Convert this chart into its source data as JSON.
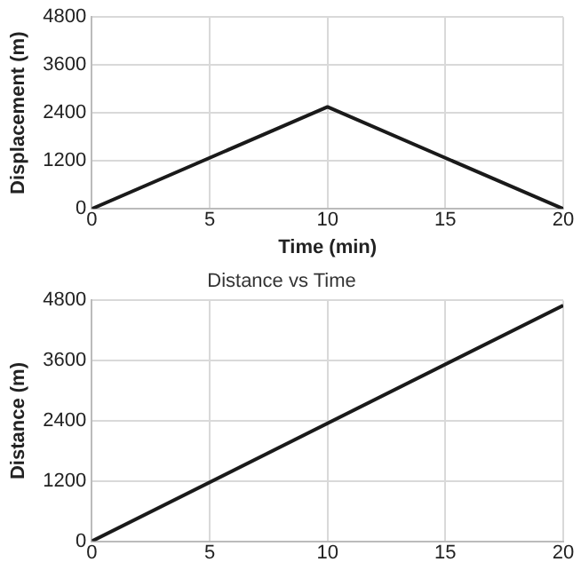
{
  "chart_data": [
    {
      "type": "line",
      "xlabel": "Time (min)",
      "ylabel": "Displacement (m)",
      "x": [
        0,
        10,
        20
      ],
      "xlim": [
        0,
        20
      ],
      "xticks": [
        0,
        5,
        10,
        15,
        20
      ],
      "ylim": [
        0,
        4800
      ],
      "yticks": [
        0,
        1200,
        2400,
        3600,
        4800
      ],
      "grid": true,
      "legend": false,
      "marker": "none",
      "series": [
        {
          "color": "#1a1a1a",
          "values": [
            0,
            2550,
            0
          ]
        }
      ]
    },
    {
      "type": "line",
      "title": "Distance vs Time",
      "ylabel": "Distance (m)",
      "x": [
        0,
        20
      ],
      "xlim": [
        0,
        20
      ],
      "xticks": [
        0,
        5,
        10,
        15,
        20
      ],
      "ylim": [
        0,
        4800
      ],
      "yticks": [
        0,
        1200,
        2400,
        3600,
        4800
      ],
      "grid": true,
      "legend": false,
      "marker": "none",
      "series": [
        {
          "color": "#1a1a1a",
          "values": [
            0,
            4700
          ]
        }
      ]
    }
  ]
}
